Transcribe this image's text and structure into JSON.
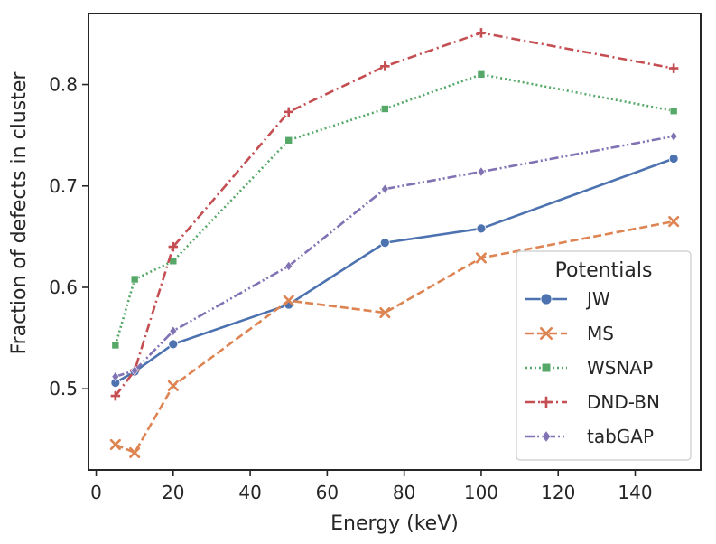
{
  "chart_data": {
    "type": "line",
    "title": "",
    "xlabel": "Energy (keV)",
    "ylabel": "Fraction of defects in cluster",
    "xlim": [
      -2,
      157
    ],
    "ylim": [
      0.42,
      0.87
    ],
    "xticks": [
      0,
      20,
      40,
      60,
      80,
      100,
      120,
      140
    ],
    "yticks": [
      0.5,
      0.6,
      0.7,
      0.8
    ],
    "grid": false,
    "legend": {
      "title": "Potentials",
      "position": "lower-right"
    },
    "series": [
      {
        "name": "JW",
        "color": "#4c72b0",
        "marker": "circle",
        "dash": "solid",
        "x": [
          5,
          10,
          20,
          50,
          75,
          100,
          150
        ],
        "y": [
          0.506,
          0.517,
          0.544,
          0.583,
          0.644,
          0.658,
          0.727
        ]
      },
      {
        "name": "MS",
        "color": "#dd8452",
        "marker": "x",
        "dash": "dashed",
        "x": [
          5,
          10,
          20,
          50,
          75,
          100,
          150
        ],
        "y": [
          0.445,
          0.437,
          0.503,
          0.587,
          0.575,
          0.629,
          0.665
        ]
      },
      {
        "name": "WSNAP",
        "color": "#55a868",
        "marker": "square",
        "dash": "dotted",
        "x": [
          5,
          10,
          20,
          50,
          75,
          100,
          150
        ],
        "y": [
          0.543,
          0.608,
          0.626,
          0.745,
          0.776,
          0.81,
          0.774
        ]
      },
      {
        "name": "DND-BN",
        "color": "#c44e52",
        "marker": "plus",
        "dash": "dashdot",
        "x": [
          5,
          10,
          20,
          50,
          75,
          100,
          150
        ],
        "y": [
          0.493,
          0.518,
          0.64,
          0.773,
          0.818,
          0.851,
          0.816
        ]
      },
      {
        "name": "tabGAP",
        "color": "#8172b3",
        "marker": "diamond",
        "dash": "dashdotdot",
        "x": [
          5,
          10,
          20,
          50,
          75,
          100,
          150
        ],
        "y": [
          0.512,
          0.518,
          0.557,
          0.621,
          0.697,
          0.714,
          0.749
        ]
      }
    ]
  }
}
